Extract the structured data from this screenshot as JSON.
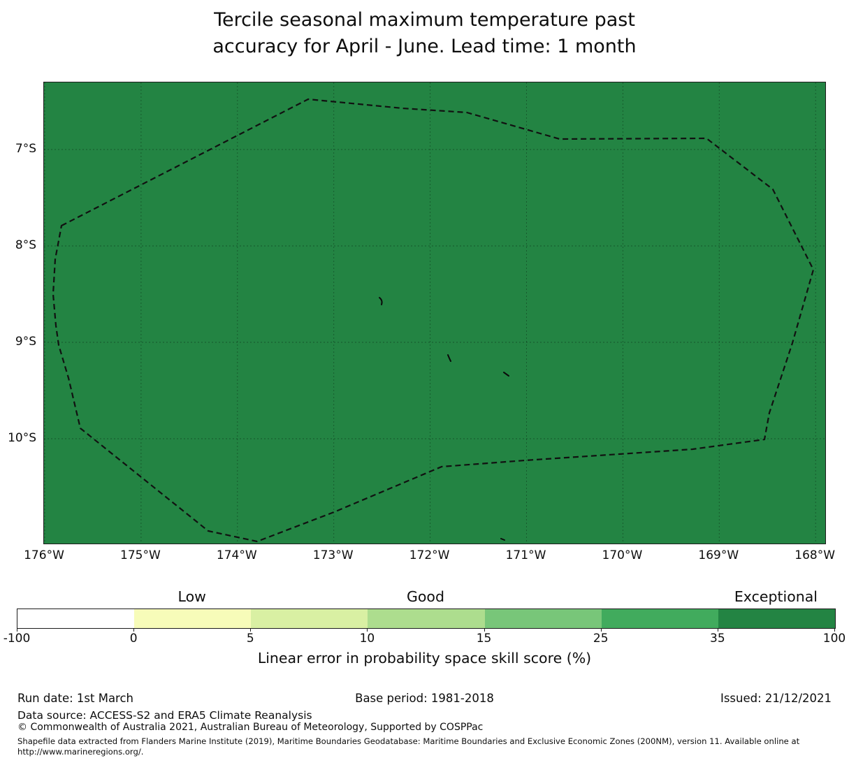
{
  "title": {
    "line1": "Tercile seasonal maximum temperature past",
    "line2": "accuracy for April - June. Lead time: 1 month"
  },
  "map": {
    "fill_color": "#238443",
    "x_ticks": [
      "176°W",
      "175°W",
      "174°W",
      "173°W",
      "172°W",
      "171°W",
      "170°W",
      "169°W",
      "168°W"
    ],
    "y_ticks": [
      "7°S",
      "8°S",
      "9°S",
      "10°S"
    ]
  },
  "colorbar": {
    "tick_labels": [
      "-100",
      "0",
      "5",
      "10",
      "15",
      "25",
      "35",
      "100"
    ],
    "segment_colors": [
      "#ffffff",
      "#f7fcb9",
      "#d9f0a3",
      "#addd8e",
      "#78c679",
      "#41ab5d",
      "#238443"
    ],
    "categories": [
      {
        "label": "Low",
        "segment_index": 1
      },
      {
        "label": "Good",
        "segment_index": 3
      },
      {
        "label": "Exceptional",
        "segment_index": 6
      }
    ],
    "caption": "Linear error in probability space skill score (%)"
  },
  "footer": {
    "run_date": "Run date: 1st March",
    "base_period": "Base period: 1981-2018",
    "issued": "Issued: 21/12/2021",
    "data_source": "Data source: ACCESS-S2 and ERA5 Climate Reanalysis",
    "copyright": "© Commonwealth of Australia 2021, Australian Bureau of Meteorology, Supported by COSPPac",
    "shapefile_note": "Shapefile data extracted from Flanders Marine Institute (2019), Maritime Boundaries Geodatabase: Maritime Boundaries and Exclusive Economic Zones (200NM), version 11. Available online at http://www.marineregions.org/."
  },
  "chart_data": {
    "type": "heatmap",
    "title": "Tercile seasonal maximum temperature past accuracy for April - June. Lead time: 1 month",
    "x_tick_labels": [
      "176°W",
      "175°W",
      "174°W",
      "173°W",
      "172°W",
      "171°W",
      "170°W",
      "169°W",
      "168°W"
    ],
    "y_tick_labels": [
      "7°S",
      "8°S",
      "9°S",
      "10°S"
    ],
    "x_range": "176°W to ~167.9°W",
    "y_range": "~6.3°S to ~11.1°S",
    "grid": true,
    "value_label": "Linear error in probability space skill score (%)",
    "colorbar_ticks": [
      -100,
      0,
      5,
      10,
      15,
      25,
      35,
      100
    ],
    "colorbar_colors": [
      "#ffffff",
      "#f7fcb9",
      "#d9f0a3",
      "#addd8e",
      "#78c679",
      "#41ab5d",
      "#238443"
    ],
    "colorbar_categories": [
      {
        "label": "Low",
        "value_span": [
          0,
          5
        ]
      },
      {
        "label": "Good",
        "value_span": [
          10,
          15
        ]
      },
      {
        "label": "Exceptional",
        "value_span": [
          35,
          100
        ]
      }
    ],
    "field_value": "uniform fill across map in top bin (35–100, Exceptional, #238443)",
    "overlays": [
      "dashed EEZ maritime boundary polygon",
      "small island outline marks near 172.5°W 8.6°S, 171.8°W 9.2°S, 171.2°W 9.4°S, 171.2°W 10.9°S"
    ]
  }
}
